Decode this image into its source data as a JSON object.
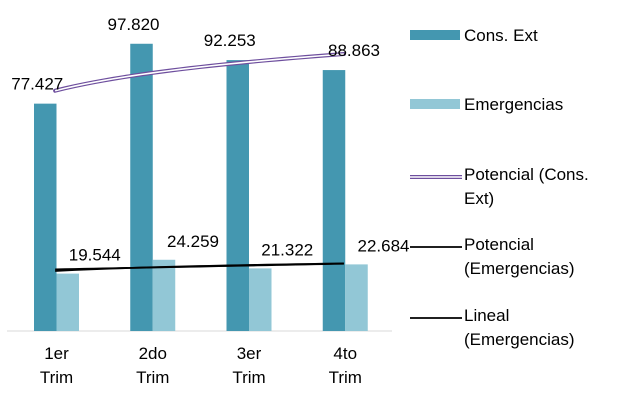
{
  "chart_data": {
    "type": "bar",
    "categories": [
      [
        "1er",
        "Trim"
      ],
      [
        "2do",
        "Trim"
      ],
      [
        "3er",
        "Trim"
      ],
      [
        "4to",
        "Trim"
      ]
    ],
    "series": [
      {
        "name": "Cons. Ext",
        "values": [
          77427,
          97820,
          92253,
          88863
        ],
        "labels": [
          "77.427",
          "97.820",
          "92.253",
          "88.863"
        ],
        "color": "#4497b0"
      },
      {
        "name": "Emergencias",
        "values": [
          19544,
          24259,
          21322,
          22684
        ],
        "labels": [
          "19.544",
          "24.259",
          "21.322",
          "22.684"
        ],
        "color": "#92c7d6"
      }
    ],
    "trendlines": [
      {
        "name": [
          "Potencial (Cons.",
          "Ext)"
        ],
        "series": 0,
        "kind": "power",
        "color": "#6e4f9e"
      },
      {
        "name": [
          "Potencial",
          "(Emergencias)"
        ],
        "series": 1,
        "kind": "power",
        "color": "#000000"
      },
      {
        "name": [
          "Lineal",
          "(Emergencias)"
        ],
        "series": 1,
        "kind": "linear",
        "color": "#000000"
      }
    ],
    "ylim": [
      0,
      110000
    ],
    "grid": false,
    "legend": "right"
  }
}
